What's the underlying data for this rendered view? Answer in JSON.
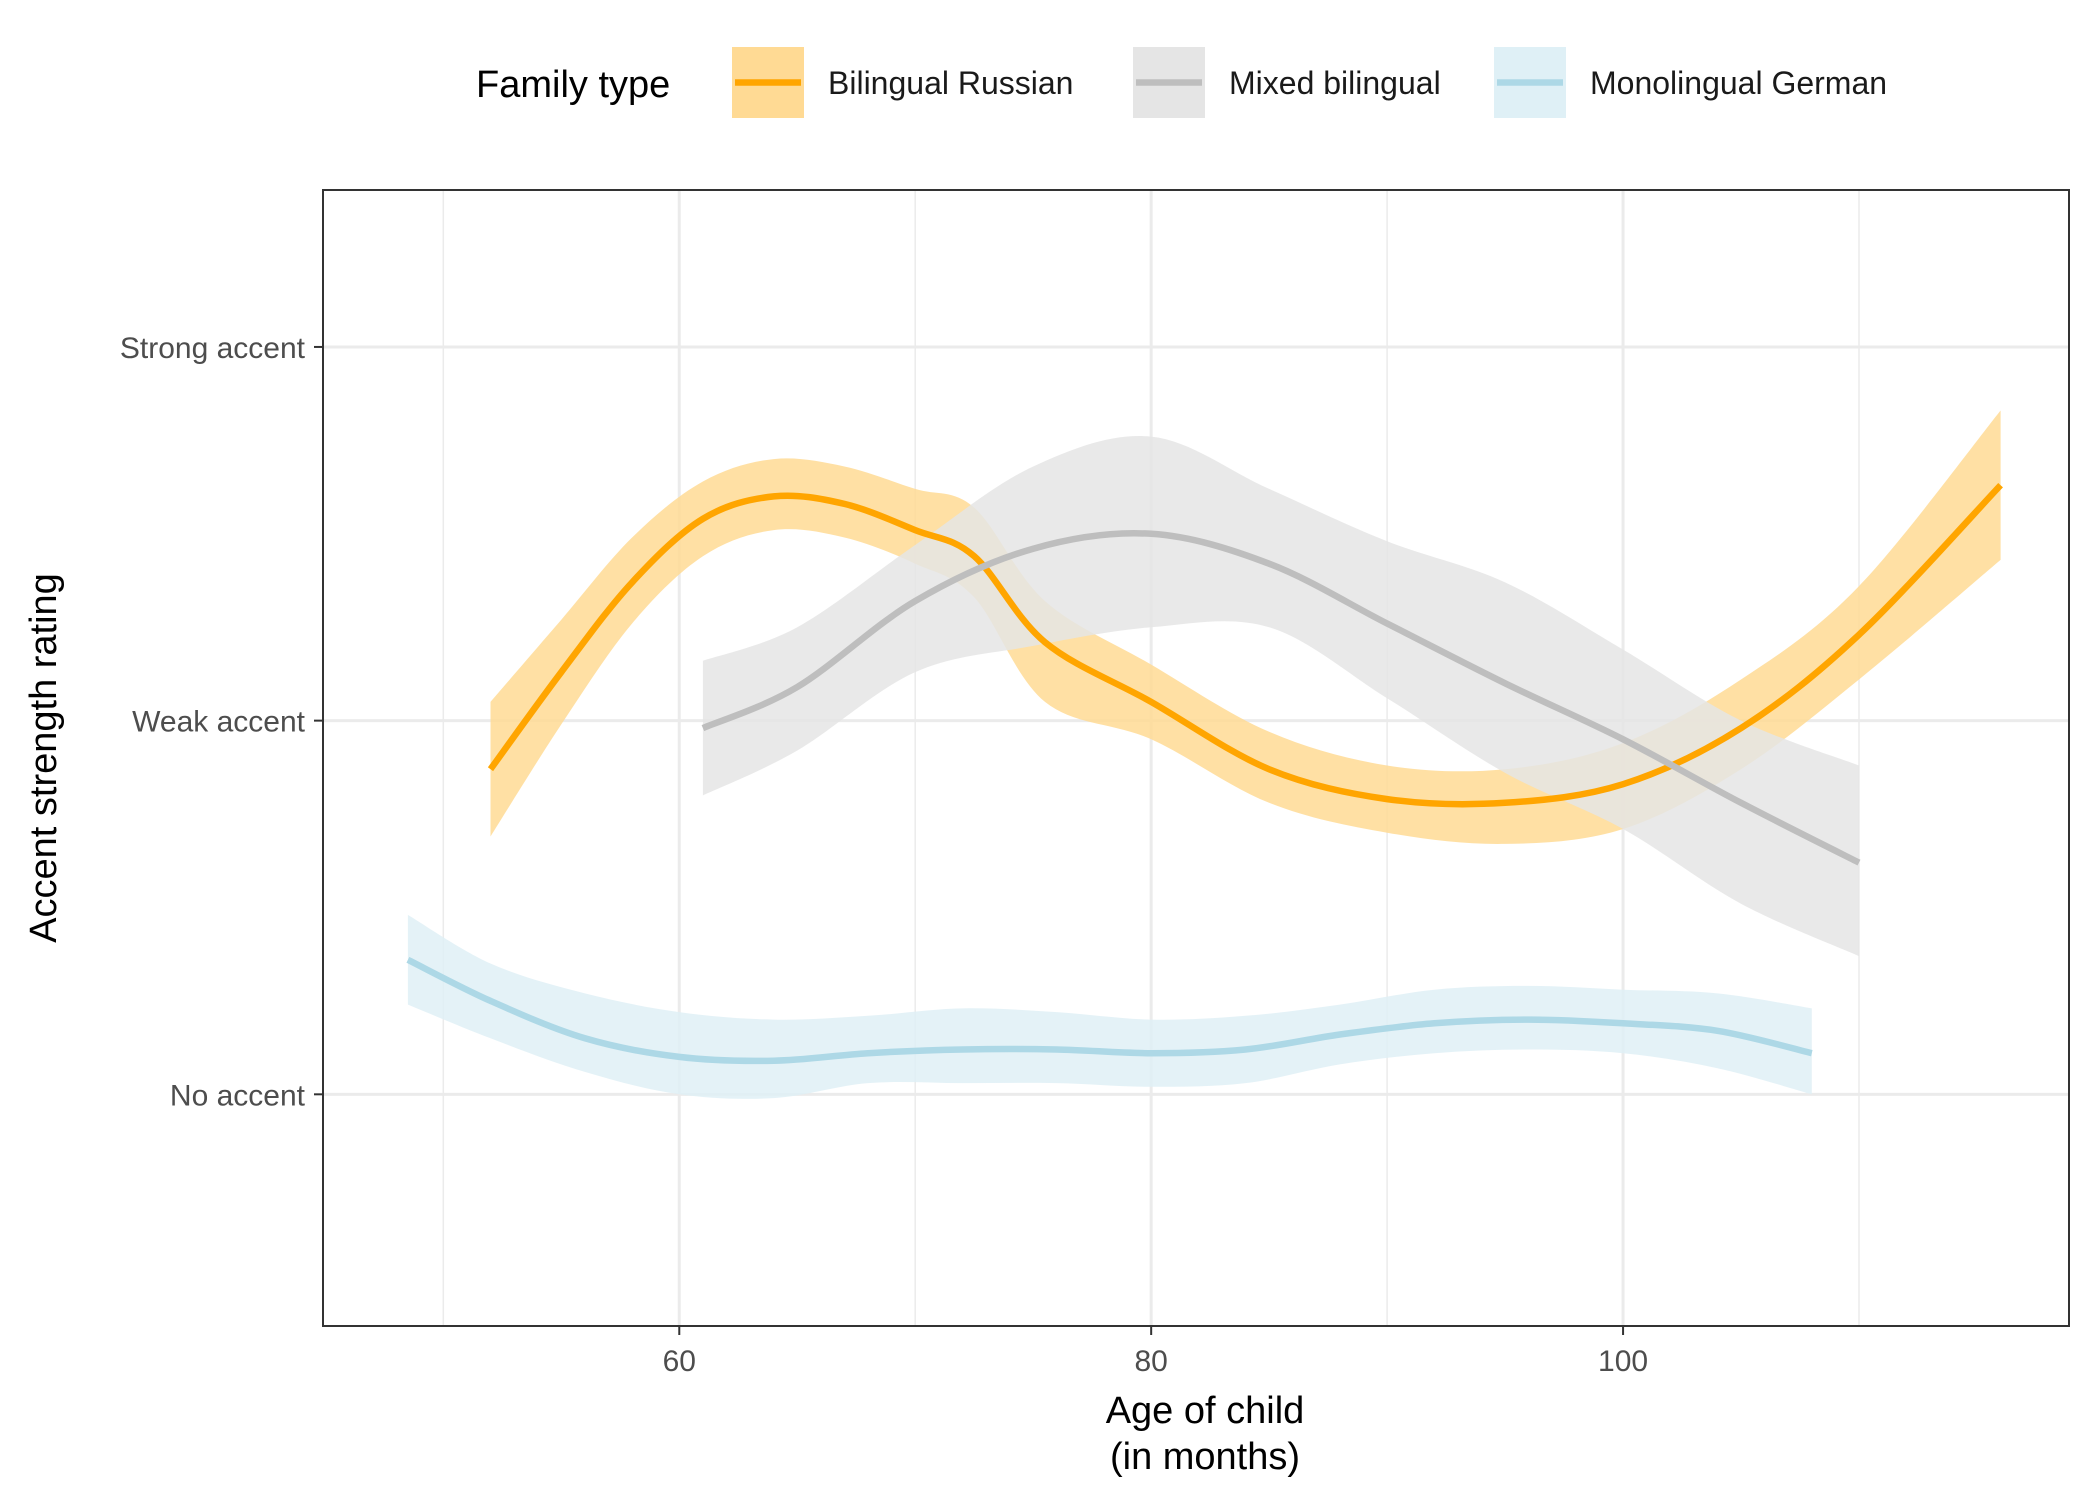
{
  "chart_data": {
    "type": "line",
    "legend": {
      "title": "Family type",
      "position": "top"
    },
    "xlabel": "Age of child\n(in months)",
    "ylabel": "Accent strength rating",
    "xlim": [
      44.9,
      118.9
    ],
    "ylim": [
      0.38,
      3.42
    ],
    "x_ticks": [
      60,
      80,
      100
    ],
    "y_ticks": [
      {
        "value": 1,
        "label": "No accent"
      },
      {
        "value": 2,
        "label": "Weak accent"
      },
      {
        "value": 3,
        "label": "Strong accent"
      }
    ],
    "grid": true,
    "series": [
      {
        "name": "Bilingual Russian",
        "color": "#FFA500",
        "fill": "#FFDA94",
        "points": [
          {
            "x": 52,
            "y": 1.87,
            "lo": 1.69,
            "hi": 2.05
          },
          {
            "x": 55,
            "y": 2.13,
            "lo": 1.99,
            "hi": 2.27
          },
          {
            "x": 58,
            "y": 2.37,
            "lo": 2.26,
            "hi": 2.49
          },
          {
            "x": 61,
            "y": 2.54,
            "lo": 2.44,
            "hi": 2.64
          },
          {
            "x": 64,
            "y": 2.6,
            "lo": 2.51,
            "hi": 2.7
          },
          {
            "x": 67,
            "y": 2.58,
            "lo": 2.49,
            "hi": 2.68
          },
          {
            "x": 70,
            "y": 2.51,
            "lo": 2.42,
            "hi": 2.62
          },
          {
            "x": 72.5,
            "y": 2.44,
            "lo": 2.33,
            "hi": 2.57
          },
          {
            "x": 75.5,
            "y": 2.21,
            "lo": 2.05,
            "hi": 2.32
          },
          {
            "x": 80,
            "y": 2.05,
            "lo": 1.95,
            "hi": 2.15
          },
          {
            "x": 85,
            "y": 1.87,
            "lo": 1.78,
            "hi": 1.97
          },
          {
            "x": 90,
            "y": 1.79,
            "lo": 1.7,
            "hi": 1.88
          },
          {
            "x": 95,
            "y": 1.78,
            "lo": 1.67,
            "hi": 1.87
          },
          {
            "x": 100,
            "y": 1.83,
            "lo": 1.71,
            "hi": 1.94
          },
          {
            "x": 105,
            "y": 1.98,
            "lo": 1.87,
            "hi": 2.11
          },
          {
            "x": 110,
            "y": 2.23,
            "lo": 2.11,
            "hi": 2.36
          },
          {
            "x": 116,
            "y": 2.63,
            "lo": 2.43,
            "hi": 2.83
          }
        ]
      },
      {
        "name": "Mixed bilingual",
        "color": "#BEBEBE",
        "fill": "#E5E5E5",
        "points": [
          {
            "x": 61,
            "y": 1.98,
            "lo": 1.8,
            "hi": 2.16
          },
          {
            "x": 65,
            "y": 2.09,
            "lo": 1.92,
            "hi": 2.25
          },
          {
            "x": 70,
            "y": 2.32,
            "lo": 2.13,
            "hi": 2.47
          },
          {
            "x": 75,
            "y": 2.46,
            "lo": 2.2,
            "hi": 2.68
          },
          {
            "x": 80,
            "y": 2.5,
            "lo": 2.25,
            "hi": 2.76
          },
          {
            "x": 85,
            "y": 2.42,
            "lo": 2.25,
            "hi": 2.62
          },
          {
            "x": 90,
            "y": 2.26,
            "lo": 2.06,
            "hi": 2.48
          },
          {
            "x": 95,
            "y": 2.1,
            "lo": 1.86,
            "hi": 2.37
          },
          {
            "x": 100,
            "y": 1.95,
            "lo": 1.71,
            "hi": 2.19
          },
          {
            "x": 105,
            "y": 1.78,
            "lo": 1.51,
            "hi": 2.0
          },
          {
            "x": 110,
            "y": 1.62,
            "lo": 1.37,
            "hi": 1.88
          }
        ]
      },
      {
        "name": "Monolingual German",
        "color": "#ADD8E6",
        "fill": "#DFF0F6",
        "points": [
          {
            "x": 48.5,
            "y": 1.36,
            "lo": 1.24,
            "hi": 1.48
          },
          {
            "x": 52,
            "y": 1.25,
            "lo": 1.15,
            "hi": 1.35
          },
          {
            "x": 56,
            "y": 1.15,
            "lo": 1.06,
            "hi": 1.27
          },
          {
            "x": 60,
            "y": 1.1,
            "lo": 1.0,
            "hi": 1.22
          },
          {
            "x": 64,
            "y": 1.09,
            "lo": 0.99,
            "hi": 1.2
          },
          {
            "x": 68,
            "y": 1.11,
            "lo": 1.03,
            "hi": 1.21
          },
          {
            "x": 72,
            "y": 1.12,
            "lo": 1.03,
            "hi": 1.23
          },
          {
            "x": 76,
            "y": 1.12,
            "lo": 1.03,
            "hi": 1.22
          },
          {
            "x": 80,
            "y": 1.11,
            "lo": 1.02,
            "hi": 1.2
          },
          {
            "x": 84,
            "y": 1.12,
            "lo": 1.03,
            "hi": 1.21
          },
          {
            "x": 88,
            "y": 1.16,
            "lo": 1.08,
            "hi": 1.24
          },
          {
            "x": 92,
            "y": 1.19,
            "lo": 1.11,
            "hi": 1.28
          },
          {
            "x": 96,
            "y": 1.2,
            "lo": 1.12,
            "hi": 1.29
          },
          {
            "x": 100,
            "y": 1.19,
            "lo": 1.11,
            "hi": 1.28
          },
          {
            "x": 104,
            "y": 1.17,
            "lo": 1.07,
            "hi": 1.27
          },
          {
            "x": 108,
            "y": 1.11,
            "lo": 1.0,
            "hi": 1.23
          }
        ]
      }
    ]
  }
}
